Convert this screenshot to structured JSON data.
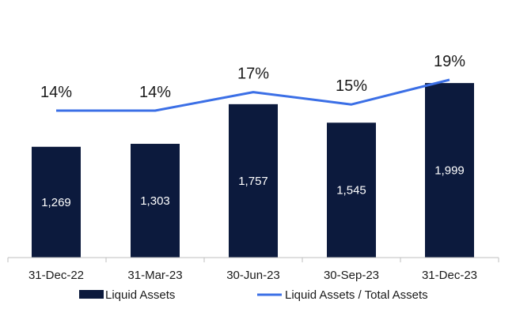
{
  "chart_data": {
    "type": "bar",
    "categories": [
      "31-Dec-22",
      "31-Mar-23",
      "30-Jun-23",
      "30-Sep-23",
      "31-Dec-23"
    ],
    "series": [
      {
        "name": "Liquid Assets",
        "kind": "bar",
        "values": [
          1269,
          1303,
          1757,
          1545,
          1999
        ],
        "labels": [
          "1,269",
          "1,303",
          "1,757",
          "1,545",
          "1,999"
        ]
      },
      {
        "name": "Liquid Assets / Total Assets",
        "kind": "line",
        "values": [
          14,
          14,
          17,
          15,
          19
        ],
        "labels": [
          "14%",
          "14%",
          "17%",
          "15%",
          "19%"
        ]
      }
    ],
    "bar_axis_range": [
      0,
      2000
    ],
    "line_axis_range": [
      0,
      20
    ],
    "grid": false,
    "legend_position": "bottom",
    "colors": {
      "bar": "#0c1a3d",
      "line": "#3b6fe6",
      "axis": "#bfbfbf"
    }
  }
}
